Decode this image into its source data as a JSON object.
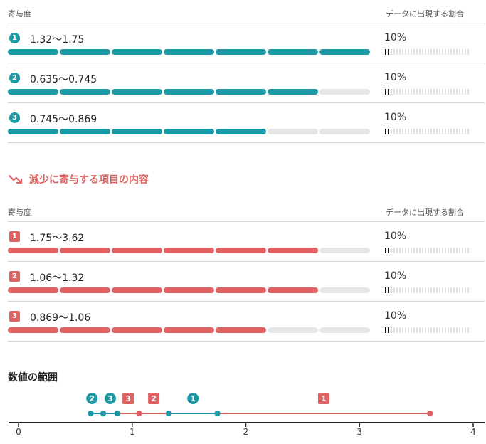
{
  "colors": {
    "teal": "#1a9aa6",
    "red": "#e06262",
    "empty": "#e6e6e6"
  },
  "increase": {
    "header_left": "寄与度",
    "header_right": "データに出現する割合",
    "rows": [
      {
        "rank": "1",
        "range": "1.32〜1.75",
        "level": 7,
        "pct": "10%"
      },
      {
        "rank": "2",
        "range": "0.635〜0.745",
        "level": 6,
        "pct": "10%"
      },
      {
        "rank": "3",
        "range": "0.745〜0.869",
        "level": 5,
        "pct": "10%"
      }
    ]
  },
  "decrease": {
    "title": "減少に寄与する項目の内容",
    "title_icon": "trending-down-icon",
    "header_left": "寄与度",
    "header_right": "データに出現する割合",
    "rows": [
      {
        "rank": "1",
        "range": "1.75〜3.62",
        "level": 6,
        "pct": "10%"
      },
      {
        "rank": "2",
        "range": "1.06〜1.32",
        "level": 6,
        "pct": "10%"
      },
      {
        "rank": "3",
        "range": "0.869〜1.06",
        "level": 5,
        "pct": "10%"
      }
    ]
  },
  "bar_segments": 7,
  "share_fraction": 0.1,
  "range_chart": {
    "title": "数値の範囲",
    "axis_ticks": [
      "0",
      "1",
      "2",
      "3",
      "4"
    ],
    "axis_min": 0,
    "axis_max": 4,
    "increase_ranges": [
      {
        "label": "1",
        "from": 1.32,
        "to": 1.75
      },
      {
        "label": "2",
        "from": 0.635,
        "to": 0.745
      },
      {
        "label": "3",
        "from": 0.745,
        "to": 0.869
      }
    ],
    "decrease_ranges": [
      {
        "label": "1",
        "from": 1.75,
        "to": 3.62
      },
      {
        "label": "2",
        "from": 1.06,
        "to": 1.32
      },
      {
        "label": "3",
        "from": 0.869,
        "to": 1.06
      }
    ]
  }
}
